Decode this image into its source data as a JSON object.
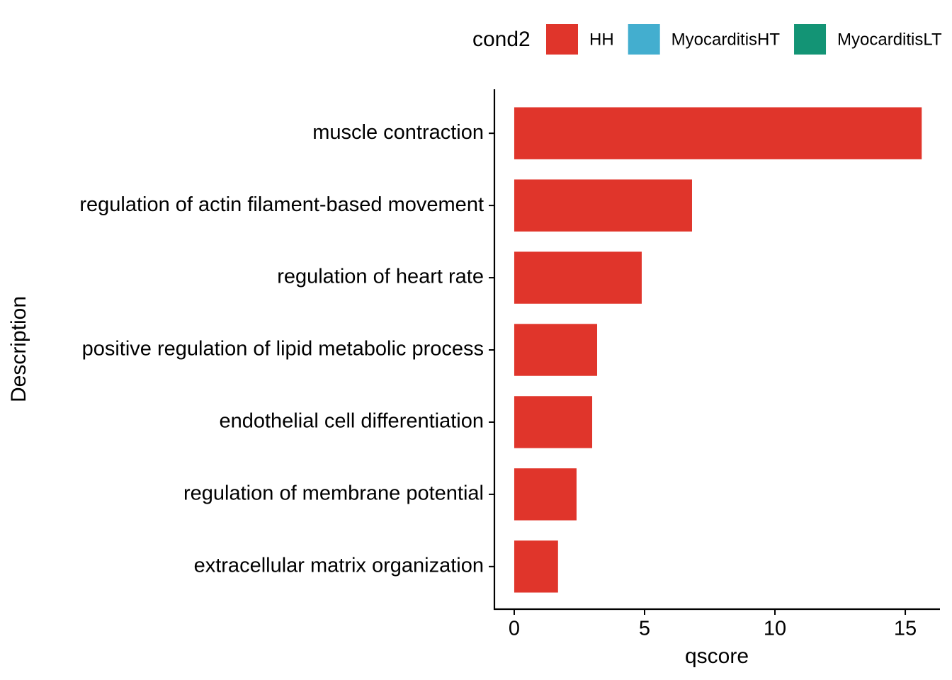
{
  "chart_data": {
    "type": "bar",
    "orientation": "horizontal",
    "x_label": "qscore",
    "y_label": "Description",
    "legend_title": "cond2",
    "legend_position": "top",
    "categories": [
      "muscle contraction",
      "regulation of actin filament-based movement",
      "regulation of heart rate",
      "positive regulation of lipid metabolic process",
      "endothelial cell differentiation",
      "regulation of membrane potential",
      "extracellular matrix organization"
    ],
    "series": [
      {
        "name": "HH",
        "color": "#e0352b",
        "values": [
          15.63,
          6.82,
          4.89,
          3.18,
          2.99,
          2.39,
          1.68
        ]
      },
      {
        "name": "MyocarditisHT",
        "color": "#43aecf",
        "values": [
          null,
          null,
          null,
          null,
          null,
          null,
          null
        ]
      },
      {
        "name": "MyocarditisLT",
        "color": "#139475",
        "values": [
          null,
          null,
          null,
          null,
          null,
          null,
          null
        ]
      }
    ],
    "xlim": [
      -0.76,
      16.33
    ],
    "xticks": [
      0,
      5,
      10,
      15
    ],
    "grid": false
  }
}
